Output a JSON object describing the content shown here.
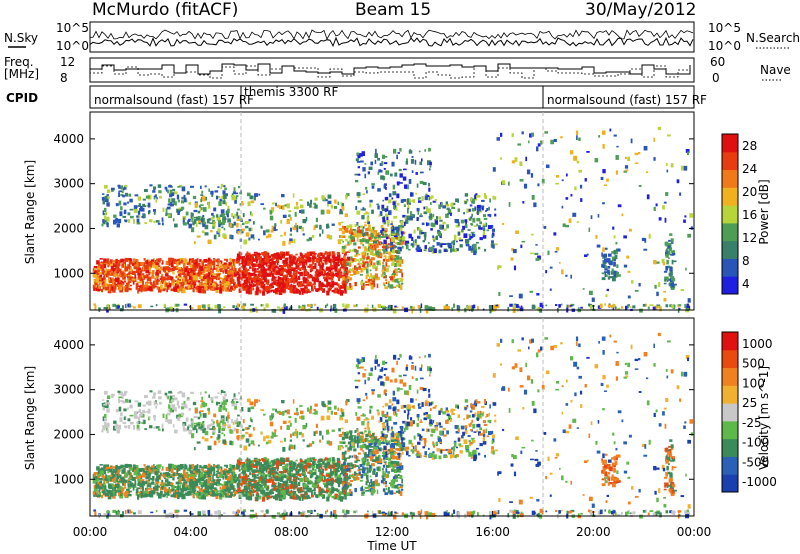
{
  "header": {
    "station": "McMurdo (fitACF)",
    "beam": "Beam 15",
    "date": "30/May/2012"
  },
  "strip_labels": {
    "nsky": "N.Sky",
    "freq_line1": "Freq.",
    "freq_line2": "[MHz]",
    "cpid": "CPID",
    "nsearch": "N.Search",
    "nave": "Nave",
    "nsky_ticks": [
      "10^5",
      "10^0"
    ],
    "nsearch_ticks": [
      "10^5",
      "10^0"
    ],
    "freq_ticks": [
      "12",
      "8"
    ],
    "nave_ticks": [
      "60",
      "0"
    ]
  },
  "cpid_segments": [
    {
      "label": "normalsound (fast) 157 RF",
      "start_h": 0
    },
    {
      "label": "themis 3300 RF",
      "start_h": 6
    },
    {
      "label": "normalsound (fast) 157 RF",
      "start_h": 18
    }
  ],
  "colors": {
    "power_scale": [
      "#1f1fe0",
      "#2a55b8",
      "#3a7f6a",
      "#4e9d56",
      "#b7d53a",
      "#f0b020",
      "#f07a1a",
      "#e83c10",
      "#e01010"
    ],
    "velocity_scale": [
      "#1a3fae",
      "#2a60b5",
      "#3b8a5a",
      "#5fb84a",
      "#c8c8c8",
      "#f0b030",
      "#f08020",
      "#e84a10",
      "#e01010"
    ]
  },
  "power_colorbar": {
    "label": "Power [dB]",
    "ticks": [
      "28",
      "24",
      "20",
      "16",
      "12",
      "8",
      "4"
    ]
  },
  "velocity_colorbar": {
    "label": "Velocity [m s^-1]",
    "ticks": [
      "1000",
      "500",
      "100",
      "25",
      "-25",
      "-100",
      "-500",
      "-1000"
    ]
  },
  "chart_data": [
    {
      "type": "heatmap",
      "panel": "power",
      "ylabel": "Slant Range [km]",
      "yticks": [
        1000,
        2000,
        3000,
        4000
      ],
      "ylim": [
        180,
        4600
      ],
      "xlim": [
        0,
        24
      ],
      "colorbar": "Power [dB]",
      "clim": [
        0,
        32
      ]
    },
    {
      "type": "heatmap",
      "panel": "velocity",
      "ylabel": "Slant Range [km]",
      "xlabel": "Time UT",
      "xticks": [
        "00:00",
        "04:00",
        "08:00",
        "12:00",
        "16:00",
        "20:00",
        "00:00"
      ],
      "yticks": [
        1000,
        2000,
        3000,
        4000
      ],
      "ylim": [
        180,
        4600
      ],
      "xlim": [
        0,
        24
      ],
      "colorbar": "Velocity [m s^-1]",
      "clim": [
        -1000,
        1000
      ]
    }
  ]
}
